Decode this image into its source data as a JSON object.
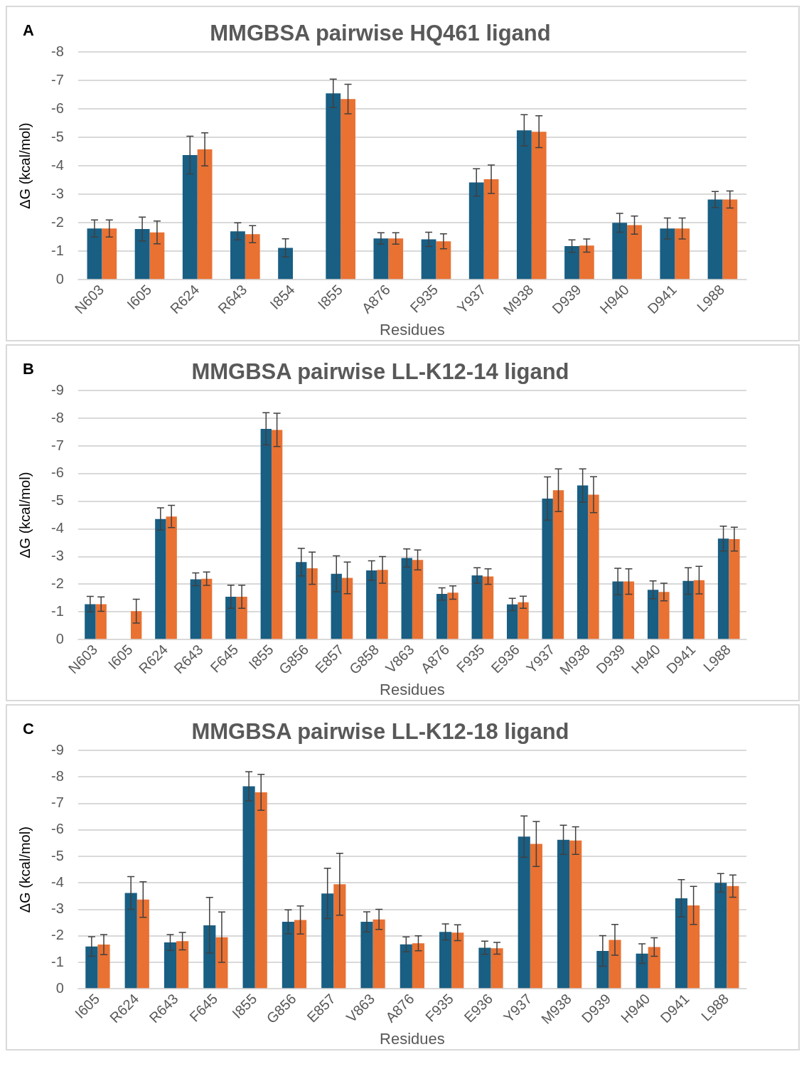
{
  "chart_data": [
    {
      "type": "bar",
      "title": "MMGBSA pairwise HQ461 ligand",
      "xlabel": "Residues",
      "ylabel": "ΔG (kcal/mol)",
      "annotations": [
        "A"
      ],
      "grid": "y",
      "ylim": [
        0,
        -8
      ],
      "yticks": [
        0,
        -1,
        -2,
        -3,
        -4,
        -5,
        -6,
        -7,
        -8
      ],
      "categories": [
        "N603",
        "I605",
        "R624",
        "R643",
        "I854",
        "I855",
        "A876",
        "F935",
        "Y937",
        "M938",
        "D939",
        "H940",
        "D941",
        "L988"
      ],
      "series": [
        {
          "color": "#195e83",
          "values": [
            -1.8,
            -1.78,
            -4.38,
            -1.7,
            -1.12,
            -6.55,
            -1.45,
            -1.42,
            -3.42,
            -5.25,
            -1.18,
            -2.0,
            -1.8,
            -2.82
          ],
          "errors": [
            0.3,
            0.42,
            0.66,
            0.3,
            0.32,
            0.5,
            0.2,
            0.25,
            0.48,
            0.55,
            0.22,
            0.33,
            0.37,
            0.28
          ]
        },
        {
          "color": "#e97132",
          "values": [
            -1.8,
            -1.66,
            -4.58,
            -1.6,
            null,
            -6.35,
            -1.45,
            -1.35,
            -3.53,
            -5.2,
            -1.2,
            -1.92,
            -1.8,
            -2.82
          ],
          "errors": [
            0.3,
            0.4,
            0.58,
            0.3,
            null,
            0.52,
            0.2,
            0.26,
            0.5,
            0.56,
            0.23,
            0.32,
            0.37,
            0.3
          ]
        }
      ]
    },
    {
      "type": "bar",
      "title": "MMGBSA pairwise LL-K12-14 ligand",
      "xlabel": "Residues",
      "ylabel": "ΔG (kcal/mol)",
      "annotations": [
        "B"
      ],
      "grid": "y",
      "ylim": [
        0,
        -9
      ],
      "yticks": [
        0,
        -1,
        -2,
        -3,
        -4,
        -5,
        -6,
        -7,
        -8,
        -9
      ],
      "categories": [
        "N603",
        "I605",
        "R624",
        "R643",
        "F645",
        "I855",
        "G856",
        "E857",
        "G858",
        "V863",
        "A876",
        "F935",
        "E936",
        "Y937",
        "M938",
        "D939",
        "H940",
        "D941",
        "L988"
      ],
      "series": [
        {
          "color": "#195e83",
          "values": [
            -1.28,
            null,
            -4.36,
            -2.18,
            -1.55,
            -7.62,
            -2.8,
            -2.38,
            -2.5,
            -2.95,
            -1.65,
            -2.32,
            -1.27,
            -5.1,
            -5.57,
            -2.1,
            -1.8,
            -2.12,
            -3.65
          ],
          "errors": [
            0.28,
            null,
            0.4,
            0.23,
            0.42,
            0.58,
            0.5,
            0.65,
            0.35,
            0.33,
            0.22,
            0.28,
            0.22,
            0.78,
            0.6,
            0.48,
            0.32,
            0.48,
            0.45
          ]
        },
        {
          "color": "#e97132",
          "values": [
            -1.28,
            -1.03,
            -4.45,
            -2.2,
            -1.55,
            -7.58,
            -2.58,
            -2.23,
            -2.52,
            -2.88,
            -1.7,
            -2.28,
            -1.35,
            -5.4,
            -5.24,
            -2.1,
            -1.72,
            -2.15,
            -3.63
          ],
          "errors": [
            0.26,
            0.43,
            0.4,
            0.24,
            0.42,
            0.6,
            0.58,
            0.57,
            0.48,
            0.36,
            0.24,
            0.28,
            0.22,
            0.77,
            0.65,
            0.46,
            0.32,
            0.5,
            0.43
          ]
        }
      ]
    },
    {
      "type": "bar",
      "title": "MMGBSA pairwise LL-K12-18 ligand",
      "xlabel": "Residues",
      "ylabel": "ΔG (kcal/mol)",
      "annotations": [
        "C"
      ],
      "grid": "y",
      "ylim": [
        0,
        -9
      ],
      "yticks": [
        0,
        -1,
        -2,
        -3,
        -4,
        -5,
        -6,
        -7,
        -8,
        -9
      ],
      "categories": [
        "I605",
        "R624",
        "R643",
        "F645",
        "I855",
        "G856",
        "E857",
        "V863",
        "A876",
        "F935",
        "E936",
        "Y937",
        "M938",
        "D939",
        "H940",
        "D941",
        "L988"
      ],
      "series": [
        {
          "color": "#195e83",
          "values": [
            -1.6,
            -3.62,
            -1.75,
            -2.4,
            -7.65,
            -2.53,
            -3.6,
            -2.53,
            -1.68,
            -2.15,
            -1.55,
            -5.75,
            -5.63,
            -1.43,
            -1.33,
            -3.42,
            -4.0
          ],
          "errors": [
            0.37,
            0.62,
            0.3,
            1.05,
            0.55,
            0.45,
            0.95,
            0.38,
            0.28,
            0.3,
            0.25,
            0.78,
            0.55,
            0.58,
            0.37,
            0.7,
            0.35
          ]
        },
        {
          "color": "#e97132",
          "values": [
            -1.67,
            -3.37,
            -1.8,
            -1.95,
            -7.42,
            -2.6,
            -3.95,
            -2.62,
            -1.72,
            -2.12,
            -1.53,
            -5.47,
            -5.6,
            -1.85,
            -1.58,
            -3.15,
            -3.88
          ],
          "errors": [
            0.38,
            0.67,
            0.33,
            0.95,
            0.68,
            0.53,
            1.17,
            0.38,
            0.28,
            0.3,
            0.22,
            0.85,
            0.52,
            0.58,
            0.35,
            0.72,
            0.42
          ]
        }
      ]
    }
  ]
}
